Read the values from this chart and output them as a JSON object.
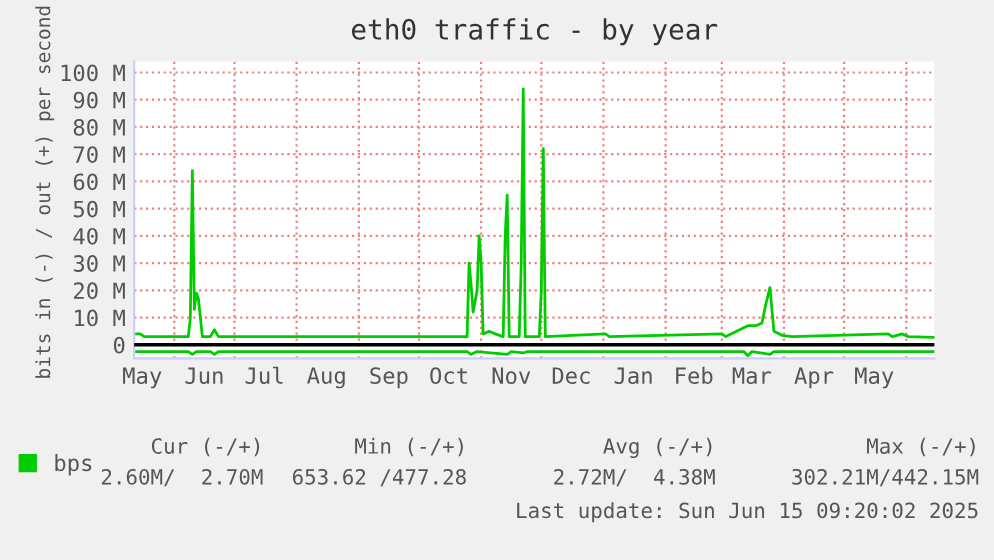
{
  "chart_data": {
    "type": "line",
    "title": "eth0 traffic - by year",
    "ylabel": "bits in (-) / out (+) per second",
    "series": [
      {
        "name": "bps",
        "color": "#00cc00",
        "x": [
          "2024-05-12",
          "2024-05-15",
          "2024-05-17",
          "2024-06-08",
          "2024-06-09",
          "2024-06-10",
          "2024-06-11",
          "2024-06-12",
          "2024-06-13",
          "2024-06-15",
          "2024-06-19",
          "2024-06-21",
          "2024-06-23",
          "2024-10-25",
          "2024-10-26",
          "2024-10-27",
          "2024-10-28",
          "2024-10-30",
          "2024-10-31",
          "2024-11-01",
          "2024-11-02",
          "2024-11-05",
          "2024-11-08",
          "2024-11-12",
          "2024-11-13",
          "2024-11-14",
          "2024-11-15",
          "2024-11-20",
          "2024-11-21",
          "2024-11-22",
          "2024-11-23",
          "2024-11-30",
          "2024-12-01",
          "2024-12-02",
          "2024-12-03",
          "2025-01-02",
          "2025-01-04",
          "2025-03-01",
          "2025-03-03",
          "2025-03-14",
          "2025-03-18",
          "2025-03-21",
          "2025-03-23",
          "2025-03-25",
          "2025-03-27",
          "2025-03-31",
          "2025-04-05",
          "2025-05-23",
          "2025-05-25",
          "2025-05-30",
          "2025-06-02",
          "2025-06-15"
        ],
        "values": [
          4,
          4,
          3,
          3,
          10,
          64,
          13,
          19,
          17,
          3,
          3,
          5.5,
          3,
          3,
          30,
          22,
          12,
          20,
          40,
          30,
          4,
          5,
          4,
          3,
          40,
          55,
          3,
          3,
          30,
          94,
          3,
          3,
          20,
          72,
          3,
          4,
          3,
          4,
          3,
          7,
          7,
          8,
          15,
          21,
          5,
          3.5,
          3,
          4,
          3,
          4,
          3,
          2.7
        ]
      },
      {
        "color": "#00cc00",
        "x": [
          "2024-05-12",
          "2024-06-08",
          "2024-06-10",
          "2024-06-12",
          "2024-06-19",
          "2024-06-21",
          "2024-06-23",
          "2024-10-25",
          "2024-10-27",
          "2024-10-30",
          "2024-11-14",
          "2024-11-16",
          "2024-11-22",
          "2024-11-24",
          "2025-03-12",
          "2025-03-14",
          "2025-03-16",
          "2025-03-25",
          "2025-03-27",
          "2025-06-15"
        ],
        "values": [
          -2.5,
          -2.5,
          -3.5,
          -2.5,
          -2.5,
          -3.5,
          -2.5,
          -2.5,
          -3.5,
          -2.5,
          -3.5,
          -2.5,
          -3,
          -2.5,
          -2.5,
          -4,
          -2.5,
          -3.5,
          -2.5,
          -2.5
        ]
      }
    ],
    "xlim": [
      "2024-05-12",
      "2025-06-15"
    ],
    "xticks": [
      {
        "value": "2024-05-16",
        "label": "May"
      },
      {
        "value": "2024-06-01",
        "label": null
      },
      {
        "value": "2024-06-16",
        "label": "Jun"
      },
      {
        "value": "2024-07-01",
        "label": null
      },
      {
        "value": "2024-07-16",
        "label": "Jul"
      },
      {
        "value": "2024-08-01",
        "label": null
      },
      {
        "value": "2024-08-16",
        "label": "Aug"
      },
      {
        "value": "2024-09-01",
        "label": null
      },
      {
        "value": "2024-09-16",
        "label": "Sep"
      },
      {
        "value": "2024-10-01",
        "label": null
      },
      {
        "value": "2024-10-16",
        "label": "Oct"
      },
      {
        "value": "2024-11-01",
        "label": null
      },
      {
        "value": "2024-11-16",
        "label": "Nov"
      },
      {
        "value": "2024-12-01",
        "label": null
      },
      {
        "value": "2024-12-16",
        "label": "Dec"
      },
      {
        "value": "2025-01-01",
        "label": null
      },
      {
        "value": "2025-01-16",
        "label": "Jan"
      },
      {
        "value": "2025-02-01",
        "label": null
      },
      {
        "value": "2025-02-15",
        "label": "Feb"
      },
      {
        "value": "2025-03-01",
        "label": null
      },
      {
        "value": "2025-03-16",
        "label": "Mar"
      },
      {
        "value": "2025-04-01",
        "label": null
      },
      {
        "value": "2025-04-16",
        "label": "Apr"
      },
      {
        "value": "2025-05-01",
        "label": null
      },
      {
        "value": "2025-05-16",
        "label": "May"
      },
      {
        "value": "2025-06-01",
        "label": null
      }
    ],
    "ylim": [
      -5,
      104
    ],
    "yticks": [
      0,
      {
        "value": 10,
        "label": "10 M"
      },
      {
        "value": 20,
        "label": "20 M"
      },
      {
        "value": 30,
        "label": "30 M"
      },
      {
        "value": 40,
        "label": "40 M"
      },
      {
        "value": 50,
        "label": "50 M"
      },
      {
        "value": 60,
        "label": "60 M"
      },
      {
        "value": 70,
        "label": "70 M"
      },
      {
        "value": 80,
        "label": "80 M"
      },
      {
        "value": 90,
        "label": "90 M"
      },
      {
        "value": 100,
        "label": "100 M"
      }
    ],
    "ref_lines": [
      {
        "axis": "y",
        "value": 0,
        "color": "#000000"
      }
    ],
    "grid": true,
    "legend": "bottom",
    "annotations": [
      "Cur (-/+)",
      "Min (-/+)",
      "Avg (-/+)",
      "Max (-/+)",
      "2.60M/  2.70M",
      "653.62 /477.28",
      "2.72M/  4.38M",
      "302.21M/442.15M",
      "Last update: Sun Jun 15 09:20:02 2025"
    ]
  }
}
